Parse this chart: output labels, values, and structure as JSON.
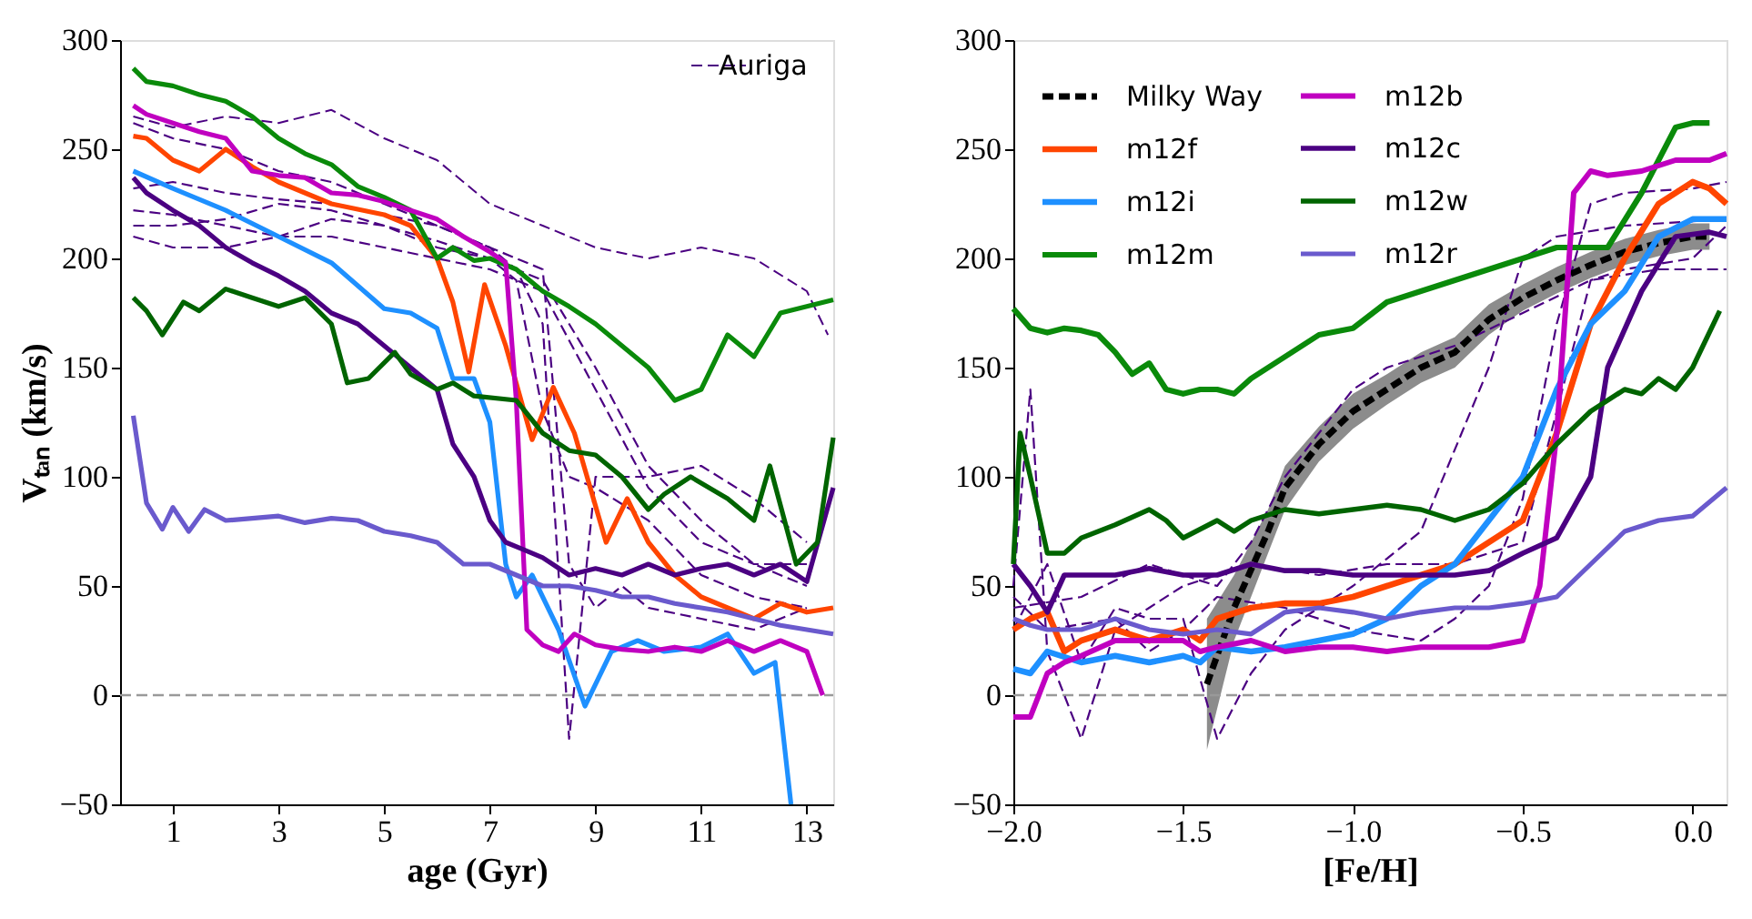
{
  "chart_data": [
    {
      "type": "line",
      "xlabel": "age (Gyr)",
      "ylabel": "Vₜₐₙ (km/s)",
      "xlim": [
        0,
        13.5
      ],
      "ylim": [
        -50,
        300
      ],
      "xticks": [
        1,
        3,
        5,
        7,
        9,
        11,
        13
      ],
      "yticks": [
        {
          "value": -50,
          "label": "−50"
        },
        0,
        50,
        100,
        150,
        200,
        250,
        300
      ],
      "grid": false,
      "legend": "top right",
      "ref_lines": [
        {
          "axis": "y",
          "value": 0,
          "color": "#999999",
          "line_style": "dashed"
        }
      ],
      "series": [
        {
          "name": "Auriga",
          "color": "#4b0082",
          "line_style": "dashed",
          "x": [
            0.25,
            1,
            2,
            3,
            4,
            5,
            6,
            7,
            8,
            9,
            10,
            11,
            12,
            13,
            13.4
          ],
          "values": [
            265,
            260,
            265,
            262,
            268,
            255,
            245,
            225,
            215,
            205,
            200,
            205,
            200,
            185,
            165
          ]
        },
        {
          "color": "#4b0082",
          "line_style": "dashed",
          "x": [
            0.25,
            1,
            2,
            3,
            4,
            5,
            6,
            7,
            8,
            8.5,
            9,
            9.5,
            10,
            11,
            12,
            13
          ],
          "values": [
            262,
            255,
            250,
            240,
            235,
            225,
            215,
            205,
            195,
            60,
            40,
            50,
            40,
            35,
            30,
            40
          ]
        },
        {
          "color": "#4b0082",
          "line_style": "dashed",
          "x": [
            0.25,
            1,
            2,
            3,
            4,
            5,
            6,
            7,
            7.5,
            8,
            8.5,
            9,
            10,
            11,
            12,
            13
          ],
          "values": [
            232,
            235,
            230,
            227,
            225,
            220,
            215,
            205,
            195,
            170,
            -20,
            100,
            100,
            105,
            90,
            70
          ]
        },
        {
          "color": "#4b0082",
          "line_style": "dashed",
          "x": [
            0.25,
            1,
            2,
            3,
            4,
            5,
            6,
            7,
            8,
            9,
            10,
            11,
            12,
            13
          ],
          "values": [
            215,
            215,
            218,
            225,
            222,
            215,
            205,
            200,
            190,
            150,
            105,
            80,
            60,
            50
          ]
        },
        {
          "color": "#4b0082",
          "line_style": "dashed",
          "x": [
            0.25,
            1,
            2,
            3,
            4,
            5,
            6,
            7,
            8,
            9,
            10,
            11,
            12,
            13
          ],
          "values": [
            210,
            205,
            205,
            210,
            210,
            205,
            200,
            195,
            185,
            140,
            95,
            70,
            60,
            60
          ]
        },
        {
          "color": "#4b0082",
          "line_style": "dashed",
          "x": [
            0.25,
            1,
            2,
            3,
            4,
            5,
            6,
            7,
            7.5,
            8,
            8.5,
            9,
            10,
            11,
            12,
            13
          ],
          "values": [
            222,
            220,
            215,
            210,
            218,
            215,
            208,
            200,
            190,
            130,
            100,
            95,
            80,
            55,
            45,
            40
          ]
        },
        {
          "color": "#ff4500",
          "x": [
            0.25,
            0.5,
            1,
            1.5,
            2,
            2.5,
            3,
            4,
            5,
            5.5,
            6,
            6.3,
            6.6,
            6.9,
            7.3,
            7.8,
            8.2,
            8.6,
            9.2,
            9.6,
            10,
            10.5,
            11,
            11.5,
            12,
            12.5,
            13,
            13.5
          ],
          "values": [
            256,
            255,
            245,
            240,
            250,
            242,
            235,
            225,
            220,
            215,
            200,
            180,
            148,
            188,
            160,
            117,
            141,
            120,
            70,
            90,
            70,
            55,
            45,
            40,
            35,
            42,
            38,
            40
          ]
        },
        {
          "color": "#1e90ff",
          "x": [
            0.25,
            1,
            2,
            3,
            4,
            5,
            5.5,
            6,
            6.3,
            6.7,
            7,
            7.3,
            7.5,
            7.8,
            8.3,
            8.8,
            9.3,
            9.8,
            10.3,
            11,
            11.5,
            12,
            12.4,
            12.7
          ],
          "values": [
            240,
            232,
            222,
            210,
            198,
            177,
            175,
            168,
            145,
            145,
            125,
            60,
            45,
            55,
            30,
            -5,
            20,
            25,
            20,
            22,
            28,
            10,
            15,
            -50
          ]
        },
        {
          "color": "#0a8a0a",
          "x": [
            0.25,
            0.5,
            1,
            1.5,
            2,
            2.5,
            3,
            3.5,
            4,
            4.5,
            5,
            5.5,
            6,
            6.3,
            6.7,
            7,
            7.5,
            8,
            8.5,
            9,
            9.5,
            10,
            10.5,
            11,
            11.5,
            12,
            12.5,
            13,
            13.5
          ],
          "values": [
            287,
            281,
            279,
            275,
            272,
            265,
            255,
            248,
            243,
            233,
            228,
            222,
            200,
            205,
            199,
            200,
            195,
            185,
            178,
            170,
            160,
            150,
            135,
            140,
            165,
            155,
            175,
            178,
            181
          ]
        },
        {
          "color": "#c000c0",
          "x": [
            0.25,
            0.5,
            1,
            1.5,
            2,
            2.5,
            3,
            3.5,
            4,
            4.5,
            5,
            5.5,
            6,
            6.5,
            7,
            7.3,
            7.5,
            7.7,
            8,
            8.3,
            8.6,
            9,
            9.5,
            10,
            10.5,
            11,
            11.5,
            12,
            12.5,
            13,
            13.3
          ],
          "values": [
            270,
            266,
            262,
            258,
            255,
            240,
            238,
            237,
            230,
            229,
            226,
            222,
            218,
            210,
            203,
            198,
            135,
            30,
            23,
            20,
            28,
            23,
            21,
            20,
            22,
            20,
            25,
            20,
            25,
            20,
            0
          ]
        },
        {
          "color": "#4b0082",
          "x": [
            0.25,
            0.5,
            1,
            1.5,
            2,
            2.5,
            3,
            3.5,
            4,
            4.5,
            5,
            5.5,
            6,
            6.3,
            6.7,
            7,
            7.3,
            7.6,
            8,
            8.5,
            9,
            9.5,
            10,
            10.5,
            11,
            11.5,
            12,
            12.5,
            13,
            13.5
          ],
          "values": [
            237,
            230,
            222,
            215,
            205,
            198,
            192,
            185,
            175,
            170,
            160,
            150,
            140,
            115,
            100,
            80,
            70,
            67,
            63,
            55,
            58,
            55,
            60,
            55,
            58,
            60,
            55,
            60,
            52,
            95
          ]
        },
        {
          "color": "#006400",
          "x": [
            0.25,
            0.5,
            0.8,
            1.2,
            1.5,
            2,
            2.5,
            3,
            3.5,
            4,
            4.3,
            4.7,
            5.2,
            5.5,
            6,
            6.3,
            6.7,
            7.5,
            8,
            8.5,
            9,
            9.5,
            10,
            10.3,
            10.8,
            11.5,
            12,
            12.3,
            12.8,
            13.2,
            13.5
          ],
          "values": [
            182,
            176,
            165,
            180,
            176,
            186,
            182,
            178,
            182,
            170,
            143,
            145,
            157,
            147,
            140,
            143,
            137,
            135,
            120,
            112,
            110,
            100,
            85,
            92,
            100,
            90,
            80,
            105,
            60,
            70,
            118
          ]
        },
        {
          "color": "#6a5acd",
          "x": [
            0.25,
            0.5,
            0.8,
            1,
            1.3,
            1.6,
            2,
            2.5,
            3,
            3.5,
            4,
            4.5,
            5,
            5.5,
            6,
            6.5,
            7,
            7.5,
            8,
            8.5,
            9,
            9.5,
            10,
            10.5,
            11,
            11.5,
            12,
            12.5,
            13,
            13.5
          ],
          "values": [
            128,
            88,
            76,
            86,
            75,
            85,
            80,
            81,
            82,
            79,
            81,
            80,
            75,
            73,
            70,
            60,
            60,
            55,
            50,
            50,
            48,
            45,
            45,
            42,
            40,
            38,
            35,
            32,
            30,
            28
          ]
        }
      ]
    },
    {
      "type": "line",
      "xlabel": "[Fe/H]",
      "xlim": [
        -2.0,
        0.1
      ],
      "ylim": [
        -50,
        300
      ],
      "xticks": [
        {
          "value": -2,
          "label": "−2.0"
        },
        {
          "value": -1.5,
          "label": "−1.5"
        },
        {
          "value": -1,
          "label": "−1.0"
        },
        {
          "value": -0.5,
          "label": "−0.5"
        },
        {
          "value": 0,
          "label": "0.0"
        }
      ],
      "yticks": [
        {
          "value": -50,
          "label": "−50"
        },
        0,
        50,
        100,
        150,
        200,
        250,
        300
      ],
      "grid": false,
      "legend": "top left",
      "ref_lines": [
        {
          "axis": "y",
          "value": 0,
          "color": "#999999",
          "line_style": "dashed"
        }
      ],
      "series": [
        {
          "color": "#4b0082",
          "line_style": "dashed",
          "x": [
            -2.0,
            -1.95,
            -1.9,
            -1.8,
            -1.7,
            -1.6,
            -1.5,
            -1.3,
            -1.1,
            -0.9,
            -0.7,
            -0.5,
            -0.4,
            -0.3,
            -0.2,
            0.0,
            0.1
          ],
          "values": [
            50,
            140,
            20,
            -20,
            30,
            40,
            50,
            60,
            55,
            60,
            60,
            70,
            130,
            190,
            195,
            200,
            215
          ]
        },
        {
          "color": "#4b0082",
          "line_style": "dashed",
          "x": [
            -2.0,
            -1.9,
            -1.8,
            -1.7,
            -1.6,
            -1.5,
            -1.4,
            -1.3,
            -1.2,
            -1.1,
            -1.0,
            -0.8,
            -0.6,
            -0.5,
            -0.4,
            -0.2,
            0.1
          ],
          "values": [
            30,
            60,
            15,
            40,
            35,
            35,
            -20,
            10,
            30,
            40,
            50,
            75,
            150,
            200,
            210,
            215,
            218
          ]
        },
        {
          "color": "#4b0082",
          "line_style": "dashed",
          "x": [
            -2.0,
            -1.8,
            -1.6,
            -1.5,
            -1.4,
            -1.3,
            -1.2,
            -1.1,
            -1.0,
            -0.9,
            -0.7,
            -0.5,
            -0.3,
            -0.1,
            0.1
          ],
          "values": [
            40,
            45,
            60,
            55,
            50,
            70,
            100,
            120,
            140,
            150,
            160,
            175,
            190,
            195,
            195
          ]
        },
        {
          "color": "#4b0082",
          "line_style": "dashed",
          "x": [
            -2.0,
            -1.9,
            -1.7,
            -1.6,
            -1.5,
            -1.4,
            -1.2,
            -1.0,
            -0.8,
            -0.7,
            -0.6,
            -0.5,
            -0.4,
            -0.3,
            -0.2,
            0.0,
            0.1
          ],
          "values": [
            45,
            30,
            35,
            20,
            30,
            45,
            40,
            30,
            25,
            35,
            50,
            90,
            170,
            225,
            230,
            232,
            235
          ]
        },
        {
          "name": "Milky Way",
          "color": "#000000",
          "line_style": "dashed",
          "x": [
            -1.43,
            -1.35,
            -1.25,
            -1.2,
            -1.1,
            -1.0,
            -0.9,
            -0.8,
            -0.7,
            -0.6,
            -0.5,
            -0.4,
            -0.3,
            -0.2,
            -0.1,
            0.0,
            0.05
          ],
          "values": [
            5,
            40,
            75,
            95,
            115,
            130,
            140,
            150,
            157,
            172,
            182,
            190,
            197,
            203,
            207,
            210,
            210
          ],
          "lower": [
            -25,
            25,
            65,
            85,
            107,
            122,
            133,
            143,
            150,
            165,
            176,
            184,
            191,
            197,
            201,
            204,
            204
          ],
          "upper": [
            35,
            55,
            85,
            105,
            123,
            138,
            147,
            157,
            164,
            179,
            188,
            196,
            203,
            209,
            213,
            216,
            216
          ]
        },
        {
          "name": "m12f",
          "color": "#ff4500",
          "x": [
            -2.0,
            -1.95,
            -1.9,
            -1.85,
            -1.8,
            -1.7,
            -1.6,
            -1.5,
            -1.45,
            -1.4,
            -1.3,
            -1.2,
            -1.1,
            -1.0,
            -0.9,
            -0.8,
            -0.7,
            -0.6,
            -0.5,
            -0.4,
            -0.3,
            -0.2,
            -0.1,
            0.0,
            0.05,
            0.1
          ],
          "values": [
            30,
            35,
            38,
            20,
            25,
            30,
            25,
            30,
            25,
            35,
            40,
            42,
            42,
            45,
            50,
            55,
            60,
            70,
            80,
            120,
            170,
            200,
            225,
            235,
            232,
            225
          ]
        },
        {
          "name": "m12i",
          "color": "#1e90ff",
          "x": [
            -2.0,
            -1.95,
            -1.9,
            -1.8,
            -1.7,
            -1.6,
            -1.5,
            -1.45,
            -1.4,
            -1.3,
            -1.2,
            -1.1,
            -1.0,
            -0.9,
            -0.8,
            -0.7,
            -0.6,
            -0.5,
            -0.4,
            -0.3,
            -0.2,
            -0.1,
            0.0,
            0.1
          ],
          "values": [
            12,
            10,
            20,
            15,
            18,
            15,
            18,
            15,
            22,
            20,
            22,
            25,
            28,
            35,
            50,
            60,
            80,
            100,
            140,
            170,
            185,
            210,
            218,
            218
          ]
        },
        {
          "name": "m12m",
          "color": "#0a8a0a",
          "x": [
            -2.0,
            -1.95,
            -1.9,
            -1.85,
            -1.8,
            -1.75,
            -1.7,
            -1.65,
            -1.6,
            -1.55,
            -1.5,
            -1.45,
            -1.4,
            -1.35,
            -1.3,
            -1.2,
            -1.1,
            -1.0,
            -0.9,
            -0.8,
            -0.7,
            -0.6,
            -0.5,
            -0.4,
            -0.3,
            -0.25,
            -0.15,
            -0.05,
            0.0,
            0.05
          ],
          "values": [
            177,
            168,
            166,
            168,
            167,
            165,
            157,
            147,
            152,
            140,
            138,
            140,
            140,
            138,
            145,
            155,
            165,
            168,
            180,
            185,
            190,
            195,
            200,
            205,
            205,
            205,
            230,
            260,
            262,
            262
          ]
        },
        {
          "name": "m12b",
          "color": "#c000c0",
          "x": [
            -2.0,
            -1.95,
            -1.9,
            -1.85,
            -1.8,
            -1.7,
            -1.6,
            -1.5,
            -1.45,
            -1.4,
            -1.3,
            -1.2,
            -1.1,
            -1.0,
            -0.9,
            -0.8,
            -0.6,
            -0.5,
            -0.45,
            -0.4,
            -0.35,
            -0.3,
            -0.25,
            -0.15,
            -0.05,
            0.05,
            0.1
          ],
          "values": [
            -10,
            -10,
            10,
            15,
            18,
            25,
            25,
            25,
            20,
            22,
            25,
            20,
            22,
            22,
            20,
            22,
            22,
            25,
            50,
            120,
            230,
            240,
            238,
            240,
            245,
            245,
            248
          ]
        },
        {
          "name": "m12c",
          "color": "#4b0082",
          "x": [
            -2.0,
            -1.95,
            -1.9,
            -1.85,
            -1.8,
            -1.7,
            -1.6,
            -1.5,
            -1.4,
            -1.3,
            -1.2,
            -1.1,
            -1.0,
            -0.9,
            -0.8,
            -0.7,
            -0.6,
            -0.5,
            -0.4,
            -0.3,
            -0.25,
            -0.15,
            -0.05,
            0.05,
            0.1
          ],
          "values": [
            60,
            50,
            38,
            55,
            55,
            55,
            58,
            55,
            55,
            60,
            57,
            57,
            55,
            55,
            55,
            55,
            57,
            65,
            72,
            100,
            150,
            185,
            210,
            212,
            210
          ]
        },
        {
          "name": "m12w",
          "color": "#006400",
          "x": [
            -2.0,
            -1.98,
            -1.95,
            -1.9,
            -1.85,
            -1.8,
            -1.7,
            -1.6,
            -1.55,
            -1.5,
            -1.4,
            -1.35,
            -1.3,
            -1.2,
            -1.1,
            -1.0,
            -0.9,
            -0.8,
            -0.7,
            -0.6,
            -0.5,
            -0.4,
            -0.3,
            -0.2,
            -0.15,
            -0.1,
            -0.05,
            0.0,
            0.08
          ],
          "values": [
            60,
            120,
            100,
            65,
            65,
            72,
            78,
            85,
            80,
            72,
            80,
            75,
            80,
            85,
            83,
            85,
            87,
            85,
            80,
            85,
            97,
            115,
            130,
            140,
            138,
            145,
            140,
            150,
            176
          ]
        },
        {
          "name": "m12r",
          "color": "#6a5acd",
          "x": [
            -2.0,
            -1.95,
            -1.9,
            -1.8,
            -1.7,
            -1.6,
            -1.5,
            -1.4,
            -1.3,
            -1.2,
            -1.1,
            -1.0,
            -0.9,
            -0.8,
            -0.7,
            -0.6,
            -0.5,
            -0.4,
            -0.3,
            -0.2,
            -0.1,
            0.0,
            0.1
          ],
          "values": [
            35,
            32,
            30,
            30,
            35,
            30,
            28,
            30,
            28,
            38,
            40,
            38,
            35,
            38,
            40,
            40,
            42,
            45,
            60,
            75,
            80,
            82,
            95
          ]
        }
      ]
    }
  ]
}
